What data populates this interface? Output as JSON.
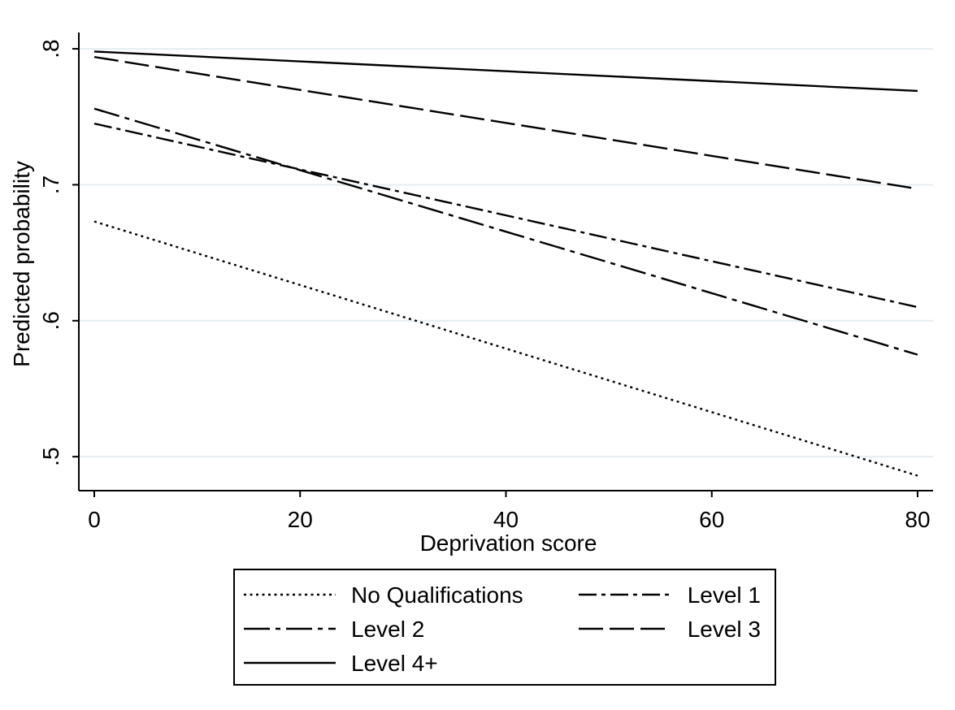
{
  "chart_data": {
    "type": "line",
    "xlabel": "Deprivation score",
    "ylabel": "Predicted probability",
    "xlim": [
      -1.5,
      81.5
    ],
    "ylim": [
      0.475,
      0.812
    ],
    "xticks": [
      0,
      20,
      40,
      60,
      80
    ],
    "yticks": [
      0.5,
      0.6,
      0.7,
      0.8
    ],
    "xtick_labels": [
      "0",
      "20",
      "40",
      "60",
      "80"
    ],
    "ytick_labels": [
      ".5",
      ".6",
      ".7",
      ".8"
    ],
    "grid": "horizontal",
    "legend_position": "bottom",
    "series": [
      {
        "name": "No Qualifications",
        "dash": "dotted",
        "x": [
          0,
          80
        ],
        "y": [
          0.673,
          0.486
        ]
      },
      {
        "name": "Level 1",
        "dash": "dash-dot",
        "x": [
          0,
          80
        ],
        "y": [
          0.745,
          0.61
        ]
      },
      {
        "name": "Level 2",
        "dash": "long-dash-dot",
        "x": [
          0,
          80
        ],
        "y": [
          0.756,
          0.575
        ]
      },
      {
        "name": "Level 3",
        "dash": "long-dash",
        "x": [
          0,
          80
        ],
        "y": [
          0.794,
          0.697
        ]
      },
      {
        "name": "Level 4+",
        "dash": "solid",
        "x": [
          0,
          80
        ],
        "y": [
          0.798,
          0.769
        ]
      }
    ]
  }
}
